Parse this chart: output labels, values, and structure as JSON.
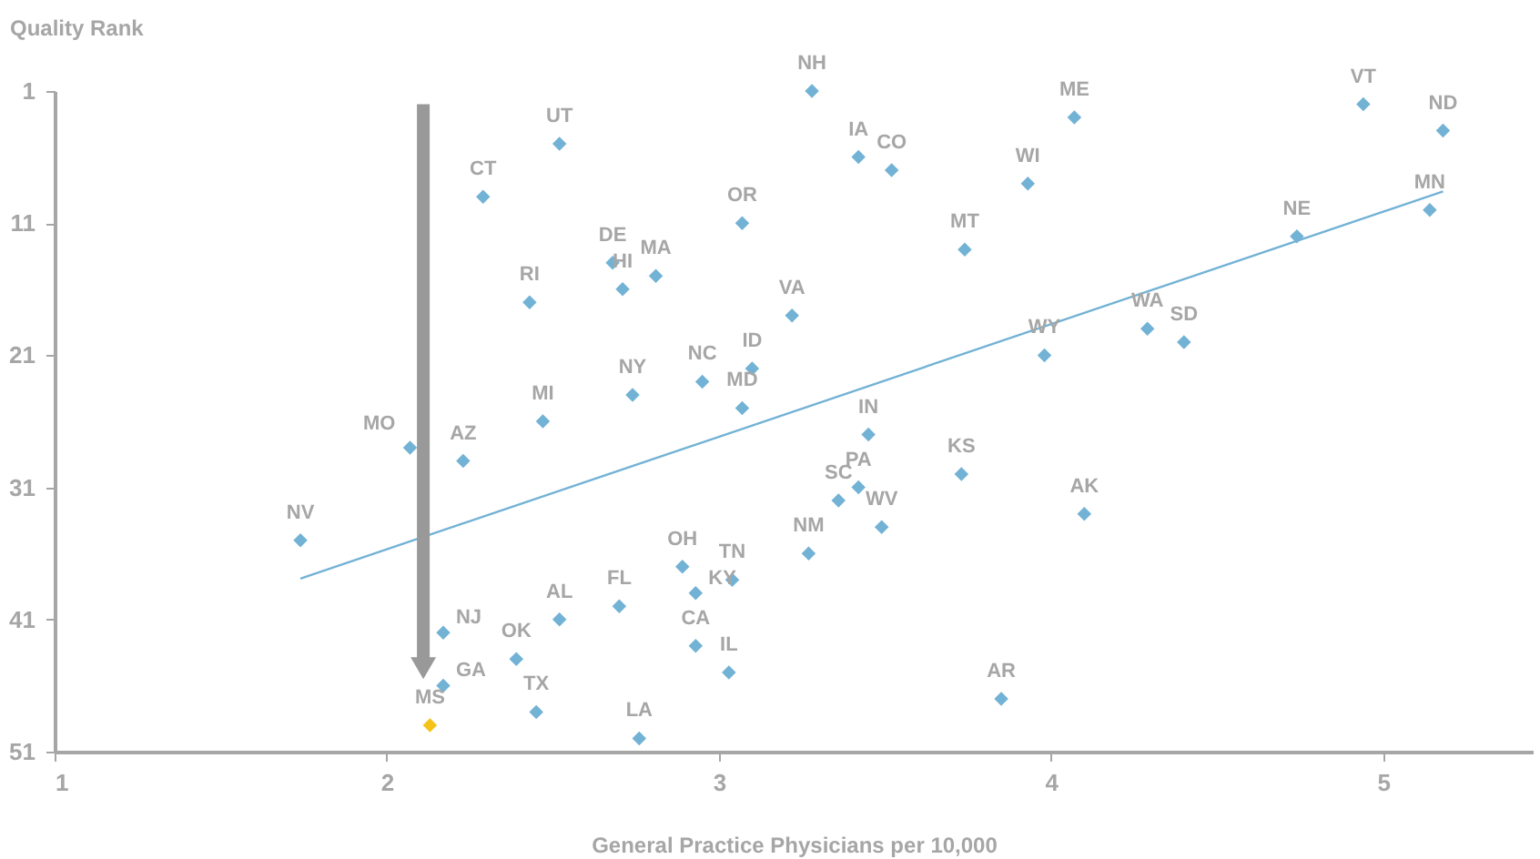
{
  "chart_data": {
    "type": "scatter",
    "xlabel": "General Practice Physicians per 10,000",
    "ylabel": "Quality Rank",
    "xlim": [
      1,
      5.45
    ],
    "xticks": [
      1,
      2,
      3,
      4,
      5
    ],
    "ylim": [
      51,
      1
    ],
    "yticks": [
      1,
      11,
      21,
      31,
      41,
      51
    ],
    "grid": false,
    "series": [
      {
        "marker": "diamond",
        "x": [
          3.28,
          4.07,
          4.94,
          5.18,
          2.52,
          3.42,
          3.52,
          3.93,
          2.29,
          5.14,
          3.07,
          4.74,
          3.74,
          2.68,
          2.81,
          2.71,
          2.43,
          3.22,
          4.29,
          4.4,
          3.98,
          3.1,
          2.95,
          2.74,
          3.07,
          2.47,
          3.45,
          2.07,
          2.23,
          3.73,
          3.42,
          3.36,
          4.1,
          3.49,
          1.74,
          3.27,
          2.89,
          3.04,
          2.93,
          2.7,
          2.52,
          2.17,
          2.93,
          2.39,
          3.03,
          2.17,
          3.85,
          2.45,
          2.13,
          2.76
        ],
        "values": [
          1,
          3,
          2,
          4,
          5,
          6,
          7,
          8,
          9,
          10,
          11,
          12,
          13,
          14,
          15,
          16,
          17,
          18,
          19,
          20,
          21,
          22,
          23,
          24,
          25,
          26,
          27,
          28,
          29,
          30,
          31,
          32,
          33,
          34,
          35,
          36,
          37,
          38,
          39,
          40,
          41,
          42,
          43,
          44,
          45,
          46,
          47,
          48,
          49,
          50
        ],
        "colors": [
          "#72b2d5",
          "#72b2d5",
          "#72b2d5",
          "#72b2d5",
          "#72b2d5",
          "#72b2d5",
          "#72b2d5",
          "#72b2d5",
          "#72b2d5",
          "#72b2d5",
          "#72b2d5",
          "#72b2d5",
          "#72b2d5",
          "#72b2d5",
          "#72b2d5",
          "#72b2d5",
          "#72b2d5",
          "#72b2d5",
          "#72b2d5",
          "#72b2d5",
          "#72b2d5",
          "#72b2d5",
          "#72b2d5",
          "#72b2d5",
          "#72b2d5",
          "#72b2d5",
          "#72b2d5",
          "#72b2d5",
          "#72b2d5",
          "#72b2d5",
          "#72b2d5",
          "#72b2d5",
          "#72b2d5",
          "#72b2d5",
          "#72b2d5",
          "#72b2d5",
          "#72b2d5",
          "#72b2d5",
          "#72b2d5",
          "#72b2d5",
          "#72b2d5",
          "#72b2d5",
          "#72b2d5",
          "#72b2d5",
          "#72b2d5",
          "#72b2d5",
          "#72b2d5",
          "#72b2d5",
          "#f5c218",
          "#72b2d5"
        ]
      },
      {
        "type": "line",
        "x": [
          1.74,
          5.18
        ],
        "values": [
          37.9,
          8.6
        ],
        "color": "#72b2d5"
      }
    ],
    "annotations": [
      {
        "text": "NH",
        "x": 3.28,
        "y": 1
      },
      {
        "text": "ME",
        "x": 4.07,
        "y": 3
      },
      {
        "text": "VT",
        "x": 4.94,
        "y": 2
      },
      {
        "text": "ND",
        "x": 5.18,
        "y": 4
      },
      {
        "text": "UT",
        "x": 2.52,
        "y": 5
      },
      {
        "text": "IA",
        "x": 3.42,
        "y": 6
      },
      {
        "text": "CO",
        "x": 3.52,
        "y": 7
      },
      {
        "text": "WI",
        "x": 3.93,
        "y": 8
      },
      {
        "text": "CT",
        "x": 2.29,
        "y": 9
      },
      {
        "text": "MN",
        "x": 5.14,
        "y": 10
      },
      {
        "text": "OR",
        "x": 3.07,
        "y": 11
      },
      {
        "text": "NE",
        "x": 4.74,
        "y": 12
      },
      {
        "text": "MT",
        "x": 3.74,
        "y": 13
      },
      {
        "text": "DE",
        "x": 2.68,
        "y": 14
      },
      {
        "text": "MA",
        "x": 2.81,
        "y": 15
      },
      {
        "text": "HI",
        "x": 2.71,
        "y": 16
      },
      {
        "text": "RI",
        "x": 2.43,
        "y": 17
      },
      {
        "text": "VA",
        "x": 3.22,
        "y": 18
      },
      {
        "text": "WA",
        "x": 4.29,
        "y": 19
      },
      {
        "text": "SD",
        "x": 4.4,
        "y": 20
      },
      {
        "text": "WY",
        "x": 3.98,
        "y": 21
      },
      {
        "text": "ID",
        "x": 3.1,
        "y": 22
      },
      {
        "text": "NC",
        "x": 2.95,
        "y": 23
      },
      {
        "text": "NY",
        "x": 2.74,
        "y": 24
      },
      {
        "text": "MD",
        "x": 3.07,
        "y": 25
      },
      {
        "text": "MI",
        "x": 2.47,
        "y": 26
      },
      {
        "text": "IN",
        "x": 3.45,
        "y": 27
      },
      {
        "text": "MO",
        "x": 2.07,
        "y": 28
      },
      {
        "text": "AZ",
        "x": 2.23,
        "y": 29
      },
      {
        "text": "KS",
        "x": 3.73,
        "y": 30
      },
      {
        "text": "PA",
        "x": 3.42,
        "y": 31
      },
      {
        "text": "SC",
        "x": 3.36,
        "y": 32
      },
      {
        "text": "AK",
        "x": 4.1,
        "y": 33
      },
      {
        "text": "WV",
        "x": 3.49,
        "y": 34
      },
      {
        "text": "NV",
        "x": 1.74,
        "y": 35
      },
      {
        "text": "NM",
        "x": 3.27,
        "y": 36
      },
      {
        "text": "OH",
        "x": 2.89,
        "y": 37
      },
      {
        "text": "TN",
        "x": 3.04,
        "y": 38
      },
      {
        "text": "KY",
        "x": 2.93,
        "y": 39
      },
      {
        "text": "FL",
        "x": 2.7,
        "y": 40
      },
      {
        "text": "AL",
        "x": 2.52,
        "y": 41
      },
      {
        "text": "NJ",
        "x": 2.17,
        "y": 42
      },
      {
        "text": "CA",
        "x": 2.93,
        "y": 43
      },
      {
        "text": "OK",
        "x": 2.39,
        "y": 44
      },
      {
        "text": "IL",
        "x": 3.03,
        "y": 45
      },
      {
        "text": "GA",
        "x": 2.17,
        "y": 46
      },
      {
        "text": "AR",
        "x": 3.85,
        "y": 47
      },
      {
        "text": "TX",
        "x": 2.45,
        "y": 48
      },
      {
        "text": "MS",
        "x": 2.13,
        "y": 49
      },
      {
        "text": "LA",
        "x": 2.76,
        "y": 50
      }
    ]
  }
}
